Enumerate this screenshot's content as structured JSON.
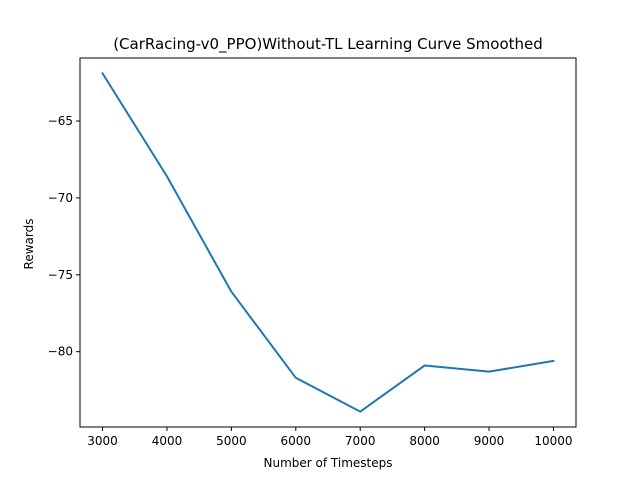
{
  "chart_data": {
    "type": "line",
    "title": "(CarRacing-v0_PPO)Without-TL Learning Curve Smoothed",
    "xlabel": "Number of Timesteps",
    "ylabel": "Rewards",
    "xlim": [
      2650,
      10350
    ],
    "ylim": [
      -84.9,
      -60.9
    ],
    "xticks": [
      3000,
      4000,
      5000,
      6000,
      7000,
      8000,
      9000,
      10000
    ],
    "yticks": [
      -80,
      -75,
      -70,
      -65
    ],
    "ytick_labels": [
      "−80",
      "−75",
      "−70",
      "−65"
    ],
    "grid": false,
    "series": [
      {
        "color": "#1f77b4",
        "x": [
          3000,
          4000,
          5000,
          6000,
          7000,
          8000,
          9000,
          10000
        ],
        "y": [
          -61.9,
          -68.6,
          -76.1,
          -81.7,
          -83.9,
          -80.9,
          -81.3,
          -80.6
        ]
      }
    ]
  }
}
